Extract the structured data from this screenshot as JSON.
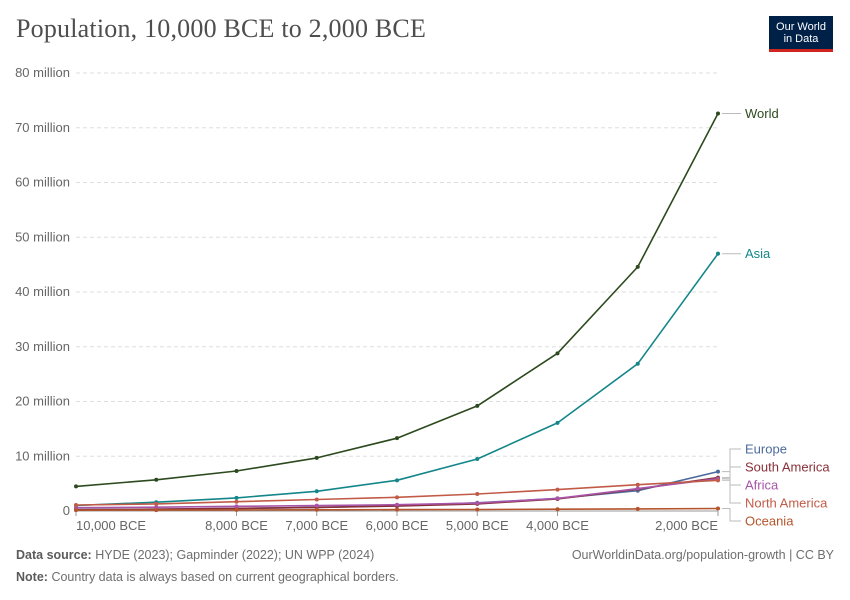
{
  "header": {
    "title": "Population, 10,000 BCE to 2,000 BCE",
    "logo_line1": "Our World",
    "logo_line2": "in Data"
  },
  "footer": {
    "source_label": "Data source:",
    "source_text": "HYDE (2023); Gapminder (2022); UN WPP (2024)",
    "url": "OurWorldinData.org/population-growth | CC BY",
    "note_label": "Note:",
    "note_text": "Country data is always based on current geographical borders."
  },
  "chart_data": {
    "type": "line",
    "title": "Population, 10,000 BCE to 2,000 BCE",
    "xlabel": "",
    "ylabel": "",
    "x": [
      -10000,
      -9000,
      -8000,
      -7000,
      -6000,
      -5000,
      -4000,
      -3000,
      -2000
    ],
    "xlim": [
      -10000,
      -2000
    ],
    "ylim": [
      0,
      80000000
    ],
    "y_ticks": [
      {
        "value": 0,
        "label": "0"
      },
      {
        "value": 10000000,
        "label": "10 million"
      },
      {
        "value": 20000000,
        "label": "20 million"
      },
      {
        "value": 30000000,
        "label": "30 million"
      },
      {
        "value": 40000000,
        "label": "40 million"
      },
      {
        "value": 50000000,
        "label": "50 million"
      },
      {
        "value": 60000000,
        "label": "60 million"
      },
      {
        "value": 70000000,
        "label": "70 million"
      },
      {
        "value": 80000000,
        "label": "80 million"
      }
    ],
    "x_ticks": [
      {
        "value": -10000,
        "label": "10,000 BCE"
      },
      {
        "value": -8000,
        "label": "8,000 BCE"
      },
      {
        "value": -7000,
        "label": "7,000 BCE"
      },
      {
        "value": -6000,
        "label": "6,000 BCE"
      },
      {
        "value": -5000,
        "label": "5,000 BCE"
      },
      {
        "value": -4000,
        "label": "4,000 BCE"
      },
      {
        "value": -2000,
        "label": "2,000 BCE"
      }
    ],
    "grid": true,
    "series": [
      {
        "name": "World",
        "color": "#2c4a1e",
        "values": [
          4500000,
          5700000,
          7300000,
          9700000,
          13300000,
          19200000,
          28800000,
          44600000,
          72600000
        ]
      },
      {
        "name": "Asia",
        "color": "#14868a",
        "values": [
          1000000,
          1600000,
          2400000,
          3600000,
          5600000,
          9500000,
          16100000,
          26900000,
          47000000
        ]
      },
      {
        "name": "Europe",
        "color": "#4c6a9c",
        "values": [
          250000,
          330000,
          470000,
          650000,
          980000,
          1500000,
          2300000,
          3700000,
          7200000
        ]
      },
      {
        "name": "South America",
        "color": "#883039",
        "values": [
          220000,
          330000,
          470000,
          650000,
          900000,
          1300000,
          2200000,
          4000000,
          6100000
        ]
      },
      {
        "name": "Africa",
        "color": "#a855a8",
        "values": [
          600000,
          700000,
          850000,
          980000,
          1150000,
          1450000,
          2300000,
          4100000,
          5900000
        ]
      },
      {
        "name": "North America",
        "color": "#c15b47",
        "values": [
          1100000,
          1300000,
          1700000,
          2100000,
          2500000,
          3100000,
          3900000,
          4800000,
          5600000
        ]
      },
      {
        "name": "Oceania",
        "color": "#b5542c",
        "values": [
          150000,
          170000,
          200000,
          220000,
          250000,
          280000,
          320000,
          380000,
          450000
        ]
      }
    ]
  }
}
